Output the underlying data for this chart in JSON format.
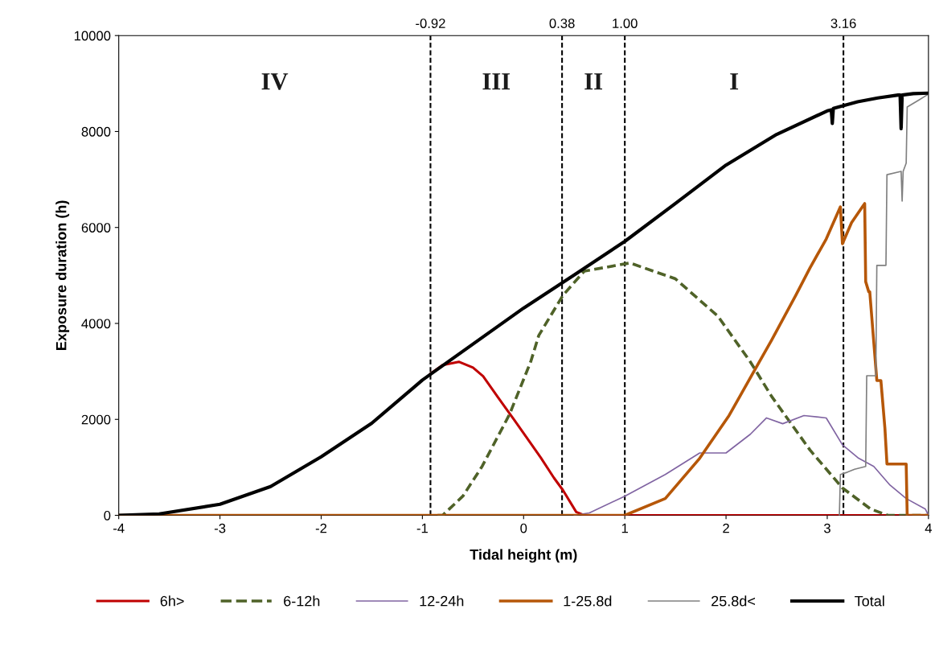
{
  "chart_data": {
    "type": "line",
    "xlabel": "Tidal height (m)",
    "ylabel": "Exposure duration (h)",
    "xlim": [
      -4,
      4
    ],
    "ylim": [
      0,
      10000
    ],
    "xticks": [
      -4,
      -3,
      -2,
      -1,
      0,
      1,
      2,
      3,
      4
    ],
    "yticks": [
      0,
      2000,
      4000,
      6000,
      8000,
      10000
    ],
    "grid": false,
    "legend": "bottom",
    "marker": "none",
    "ref_lines": [
      {
        "axis": "x",
        "value": -0.92,
        "label": "-0.92",
        "line_style": "dashed",
        "color": "#000000"
      },
      {
        "axis": "x",
        "value": 0.38,
        "label": "0.38",
        "line_style": "dashed",
        "color": "#000000"
      },
      {
        "axis": "x",
        "value": 1.0,
        "label": "1.00",
        "line_style": "dashed",
        "color": "#000000"
      },
      {
        "axis": "x",
        "value": 3.16,
        "label": "3.16",
        "line_style": "dashed",
        "color": "#000000"
      }
    ],
    "annotations": [
      "IV",
      "III",
      "II",
      "I"
    ],
    "series": [
      {
        "name": "6h>",
        "color": "#c00000",
        "line_style": "solid",
        "x": [
          -0.92,
          -0.8,
          -0.64,
          -0.5,
          -0.4,
          -0.25,
          -0.09,
          0.05,
          0.17,
          0.3,
          0.39,
          0.52,
          0.6,
          4
        ],
        "values": [
          2950,
          3130,
          3200,
          3080,
          2900,
          2450,
          1980,
          1560,
          1200,
          780,
          520,
          70,
          0,
          0
        ]
      },
      {
        "name": "6-12h",
        "color": "#4f6228",
        "line_style": "dashed",
        "x": [
          -0.85,
          -0.8,
          -0.6,
          -0.41,
          -0.14,
          0.07,
          0.15,
          0.39,
          0.6,
          1.05,
          1.5,
          1.92,
          2.24,
          2.45,
          2.83,
          3.15,
          3.43,
          3.6,
          4
        ],
        "values": [
          0,
          0,
          400,
          1020,
          2100,
          3200,
          3750,
          4590,
          5090,
          5260,
          4930,
          4150,
          3200,
          2480,
          1360,
          570,
          130,
          0,
          0
        ]
      },
      {
        "name": "12-24h",
        "color": "#8064a2",
        "line_style": "solid",
        "x": [
          0.5,
          0.65,
          1.0,
          1.4,
          1.74,
          2.0,
          2.24,
          2.4,
          2.56,
          2.77,
          2.99,
          3.15,
          3.31,
          3.46,
          3.62,
          3.78,
          3.97,
          4
        ],
        "values": [
          0,
          50,
          400,
          850,
          1300,
          1300,
          1690,
          2030,
          1910,
          2080,
          2030,
          1470,
          1190,
          1020,
          630,
          350,
          130,
          0
        ]
      },
      {
        "name": "1-25.8d",
        "color": "#b65708",
        "line_style": "solid",
        "x": [
          -4,
          1.0,
          1.4,
          1.74,
          2.03,
          2.27,
          2.45,
          2.69,
          2.83,
          2.99,
          3.13,
          3.15,
          3.24,
          3.37,
          3.38,
          3.41,
          3.42,
          3.49,
          3.53,
          3.57,
          3.59,
          3.78,
          3.79,
          4
        ],
        "values": [
          0,
          0,
          350,
          1190,
          2080,
          2980,
          3650,
          4590,
          5160,
          5760,
          6430,
          5660,
          6100,
          6500,
          4870,
          4660,
          4660,
          2810,
          2810,
          1810,
          1070,
          1070,
          0,
          0
        ]
      },
      {
        "name": "25.8d<",
        "color": "#808080",
        "line_style": "solid",
        "x": [
          3.12,
          3.13,
          3.2,
          3.27,
          3.38,
          3.39,
          3.48,
          3.49,
          3.58,
          3.59,
          3.73,
          3.74,
          3.75,
          3.78,
          3.79,
          3.9,
          4
        ],
        "values": [
          0,
          850,
          900,
          960,
          1020,
          2910,
          2910,
          5210,
          5210,
          7100,
          7170,
          6550,
          7170,
          7340,
          8510,
          8650,
          8780
        ]
      },
      {
        "name": "Total",
        "color": "#000000",
        "line_style": "solid",
        "x": [
          -4,
          -3.6,
          -3,
          -2.5,
          -2,
          -1.5,
          -1,
          -0.5,
          0,
          0.5,
          1,
          1.5,
          2,
          2.5,
          3,
          3.04,
          3.05,
          3.06,
          3.3,
          3.5,
          3.7,
          3.72,
          3.73,
          3.74,
          3.85,
          4
        ],
        "values": [
          0,
          30,
          230,
          600,
          1220,
          1920,
          2820,
          3570,
          4320,
          5010,
          5710,
          6500,
          7300,
          7940,
          8430,
          8450,
          8170,
          8480,
          8620,
          8700,
          8760,
          8760,
          8060,
          8760,
          8790,
          8800
        ]
      }
    ]
  }
}
